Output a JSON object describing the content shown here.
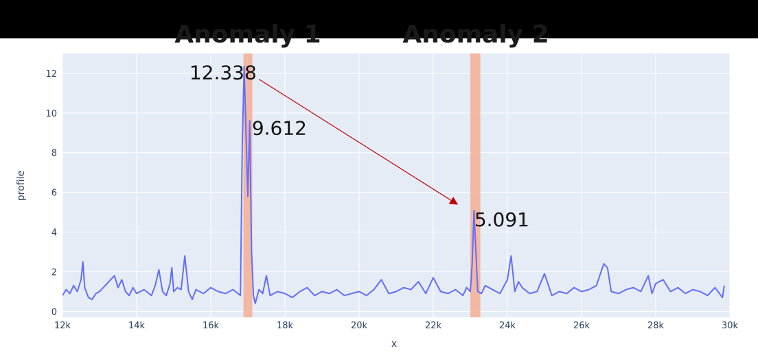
{
  "chart_data": {
    "type": "line",
    "title": "",
    "xlabel": "x",
    "ylabel": "profile",
    "xlim": [
      12000,
      30000
    ],
    "ylim": [
      -0.3,
      13
    ],
    "x_ticks": [
      12000,
      14000,
      16000,
      18000,
      20000,
      22000,
      24000,
      26000,
      28000,
      30000
    ],
    "x_tick_labels": [
      "12k",
      "14k",
      "16k",
      "18k",
      "20k",
      "22k",
      "24k",
      "26k",
      "28k",
      "30k"
    ],
    "y_ticks": [
      0,
      2,
      4,
      6,
      8,
      10,
      12
    ],
    "y_tick_labels": [
      "0",
      "2",
      "4",
      "6",
      "8",
      "10",
      "12"
    ],
    "grid": true,
    "line_color": "#636efa",
    "background_color": "#e5ecf6",
    "band_color": "#f4b29a",
    "arrow_color": "#c00000",
    "series": [
      {
        "x": [
          12000,
          12100,
          12200,
          12300,
          12400,
          12500,
          12550,
          12600,
          12700,
          12800,
          12900,
          13000,
          13200,
          13400,
          13500,
          13600,
          13700,
          13800,
          13900,
          14000,
          14200,
          14400,
          14500,
          14600,
          14700,
          14800,
          14900,
          14950,
          15000,
          15100,
          15200,
          15300,
          15400,
          15500,
          15600,
          15800,
          16000,
          16200,
          16400,
          16600,
          16800,
          16850,
          16900,
          16950,
          17000,
          17050,
          17100,
          17150,
          17200,
          17300,
          17400,
          17500,
          17600,
          17800,
          18000,
          18200,
          18400,
          18600,
          18800,
          19000,
          19200,
          19400,
          19600,
          19800,
          20000,
          20200,
          20400,
          20600,
          20800,
          21000,
          21200,
          21400,
          21600,
          21800,
          22000,
          22200,
          22400,
          22600,
          22800,
          22900,
          23000,
          23050,
          23100,
          23150,
          23200,
          23300,
          23400,
          23600,
          23800,
          24000,
          24100,
          24200,
          24300,
          24400,
          24600,
          24800,
          25000,
          25200,
          25400,
          25600,
          25800,
          26000,
          26200,
          26400,
          26600,
          26700,
          26800,
          27000,
          27200,
          27400,
          27600,
          27800,
          27900,
          28000,
          28200,
          28400,
          28600,
          28800,
          29000,
          29200,
          29400,
          29600,
          29800,
          29850
        ],
        "y": [
          0.8,
          1.1,
          0.9,
          1.3,
          1.0,
          1.6,
          2.5,
          1.2,
          0.7,
          0.6,
          0.9,
          1.0,
          1.4,
          1.8,
          1.2,
          1.6,
          1.0,
          0.8,
          1.2,
          0.9,
          1.1,
          0.8,
          1.3,
          2.1,
          1.0,
          0.8,
          1.4,
          2.2,
          1.0,
          1.2,
          1.1,
          2.8,
          1.0,
          0.6,
          1.1,
          0.9,
          1.2,
          1.0,
          0.9,
          1.1,
          0.8,
          8.5,
          12.338,
          9.0,
          5.8,
          9.612,
          3.0,
          0.8,
          0.4,
          1.1,
          0.9,
          1.8,
          0.8,
          1.0,
          0.9,
          0.7,
          1.0,
          1.2,
          0.8,
          1.0,
          0.9,
          1.1,
          0.8,
          0.9,
          1.0,
          0.8,
          1.1,
          1.6,
          0.9,
          1.0,
          1.2,
          1.1,
          1.5,
          0.9,
          1.7,
          1.0,
          0.9,
          1.1,
          0.8,
          1.2,
          1.0,
          2.4,
          5.091,
          3.0,
          1.0,
          0.9,
          1.3,
          1.1,
          0.9,
          1.6,
          2.8,
          1.0,
          1.5,
          1.2,
          0.9,
          1.0,
          1.9,
          0.8,
          1.0,
          0.9,
          1.2,
          1.0,
          1.1,
          1.3,
          2.4,
          2.2,
          1.0,
          0.9,
          1.1,
          1.2,
          1.0,
          1.8,
          0.9,
          1.4,
          1.6,
          1.0,
          1.2,
          0.9,
          1.1,
          1.0,
          0.8,
          1.2,
          0.7,
          1.3
        ]
      }
    ],
    "bands": [
      {
        "x0": 16880,
        "x1": 17120
      },
      {
        "x0": 23000,
        "x1": 23270
      }
    ],
    "annotations": [
      {
        "text": "Anomaly 1",
        "x": 17000,
        "kind": "title"
      },
      {
        "text": "Anomaly 2",
        "x": 23150,
        "kind": "title"
      },
      {
        "text": "12.338",
        "x": 16330,
        "y": 11.7,
        "kind": "label"
      },
      {
        "text": "9.612",
        "x": 17850,
        "y": 8.9,
        "kind": "label"
      },
      {
        "text": "5.091",
        "x": 23850,
        "y": 4.3,
        "kind": "label"
      }
    ],
    "arrow": {
      "from": [
        17300,
        11.7
      ],
      "to": [
        22650,
        5.4
      ]
    }
  }
}
